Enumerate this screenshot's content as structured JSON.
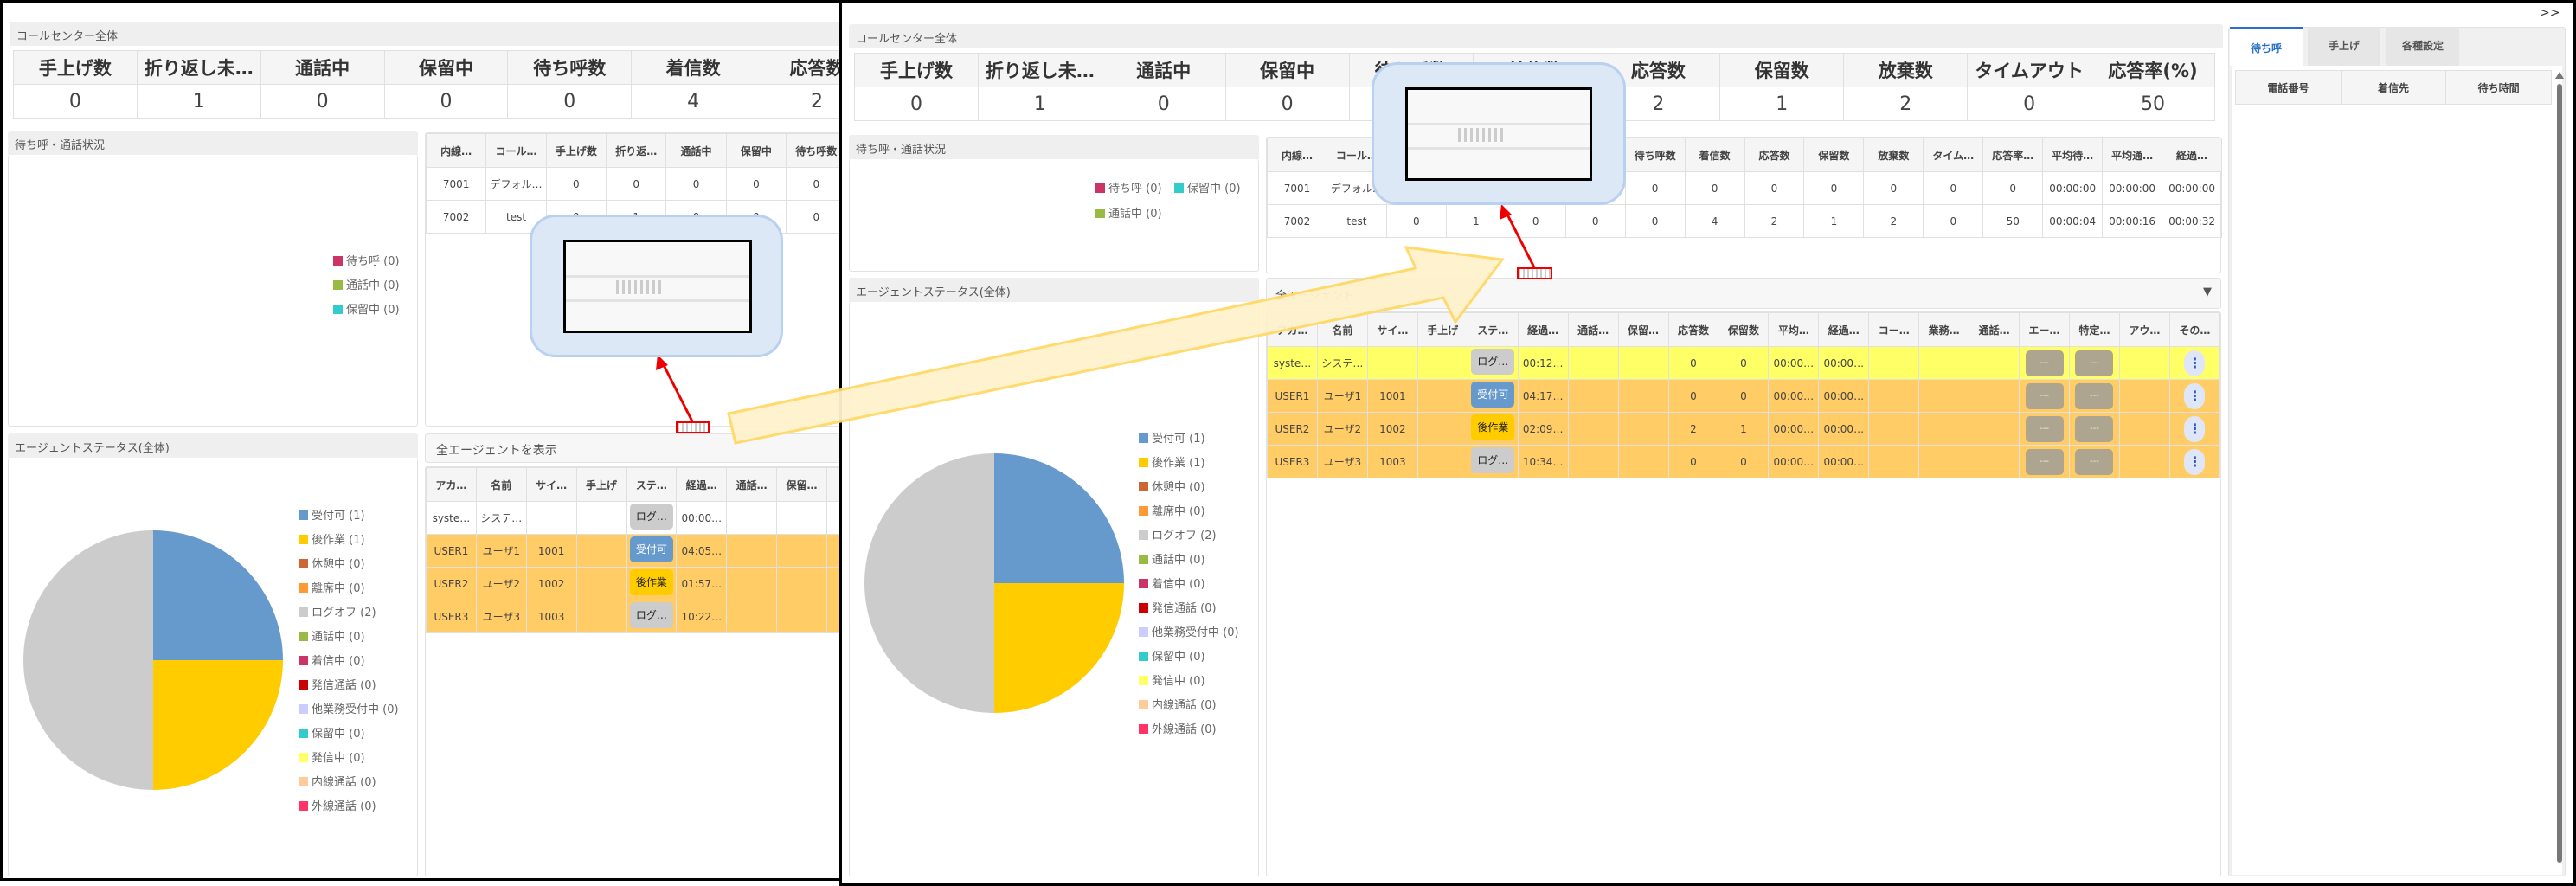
{
  "expand_label": ">>",
  "sections": {
    "callcenter": "コールセンター全体",
    "queue": "待ち呼・通話状況",
    "agent_status": "エージェントステータス(全体)",
    "agent_filter_left": "全エージェントを表示",
    "agent_filter_right": "全エージェント…",
    "dropdown_icon": "▼"
  },
  "kpi": {
    "headers": [
      "手上げ数",
      "折り返し未…",
      "通話中",
      "保留中",
      "待ち呼数",
      "着信数",
      "応答数",
      "保留数",
      "放棄数",
      "タイムアウト",
      "応答率(%)"
    ],
    "values": [
      "0",
      "1",
      "0",
      "0",
      "0",
      "4",
      "2",
      "1",
      "2",
      "0",
      "50"
    ]
  },
  "queue_legend": [
    {
      "label": "待ち呼 (0)",
      "color": "#cc3366"
    },
    {
      "label": "通話中 (0)",
      "color": "#99bb44"
    },
    {
      "label": "保留中 (0)",
      "color": "#33cccc"
    }
  ],
  "extension_table": {
    "headers": [
      "内線…",
      "コール…",
      "手上げ数",
      "折り返…",
      "通話中",
      "保留中",
      "待ち呼数",
      "着信数",
      "応答数",
      "保留数",
      "放棄数",
      "タイム…",
      "応答率…",
      "平均待…",
      "平均通…",
      "経過…"
    ],
    "rows": [
      [
        "7001",
        "デフォル…",
        "0",
        "0",
        "0",
        "0",
        "0",
        "0",
        "0",
        "0",
        "0",
        "0",
        "0",
        "00:00:00",
        "00:00:00",
        "00:00:00"
      ],
      [
        "7002",
        "test",
        "0",
        "1",
        "0",
        "0",
        "0",
        "4",
        "2",
        "1",
        "2",
        "0",
        "50",
        "00:00:04",
        "00:00:16",
        "00:00:32"
      ]
    ]
  },
  "agent_table_left": {
    "headers": [
      "アカ…",
      "名前",
      "サイ…",
      "手上げ",
      "ステ…",
      "経過…",
      "通話…",
      "保留…",
      "応…"
    ],
    "rows": [
      {
        "cells": [
          "syste…",
          "システ…",
          "",
          "",
          "ログ…",
          "00:00…",
          "",
          "",
          ""
        ],
        "status": "logoff",
        "bg": "#ffffff"
      },
      {
        "cells": [
          "USER1",
          "ユーザ1",
          "1001",
          "",
          "受付可",
          "04:05…",
          "",
          "",
          ""
        ],
        "status": "available",
        "bg": "#ffcc66"
      },
      {
        "cells": [
          "USER2",
          "ユーザ2",
          "1002",
          "",
          "後作業",
          "01:57…",
          "",
          "",
          ""
        ],
        "status": "after",
        "bg": "#ffcc66"
      },
      {
        "cells": [
          "USER3",
          "ユーザ3",
          "1003",
          "",
          "ログ…",
          "10:22…",
          "",
          "",
          ""
        ],
        "status": "logoff",
        "bg": "#ffcc66"
      }
    ]
  },
  "agent_table_right": {
    "headers": [
      "アカ…",
      "名前",
      "サイ…",
      "手上げ",
      "ステ…",
      "経過…",
      "通話…",
      "保留…",
      "応答数",
      "保留数",
      "平均…",
      "経過…",
      "コー…",
      "業務…",
      "通話…",
      "エー…",
      "特定…",
      "アウ…",
      "その…"
    ],
    "button_label": "---",
    "menu_label": "⋮",
    "rows": [
      {
        "cells": [
          "syste…",
          "システ…",
          "",
          "",
          "ログ…",
          "00:12…",
          "",
          "",
          "0",
          "0",
          "00:00…",
          "00:00…",
          "",
          "",
          "",
          "",
          "",
          "",
          ""
        ],
        "status": "logoff",
        "bg": "#ffff66"
      },
      {
        "cells": [
          "USER1",
          "ユーザ1",
          "1001",
          "",
          "受付可",
          "04:17…",
          "",
          "",
          "0",
          "0",
          "00:00…",
          "00:00…",
          "",
          "",
          "",
          "",
          "",
          "",
          ""
        ],
        "status": "available",
        "bg": "#ffcc66"
      },
      {
        "cells": [
          "USER2",
          "ユーザ2",
          "1002",
          "",
          "後作業",
          "02:09…",
          "",
          "",
          "2",
          "1",
          "00:00…",
          "00:00…",
          "",
          "",
          "",
          "",
          "",
          "",
          ""
        ],
        "status": "after",
        "bg": "#ffcc66"
      },
      {
        "cells": [
          "USER3",
          "ユーザ3",
          "1003",
          "",
          "ログ…",
          "10:34…",
          "",
          "",
          "0",
          "0",
          "00:00…",
          "00:00…",
          "",
          "",
          "",
          "",
          "",
          "",
          ""
        ],
        "status": "logoff",
        "bg": "#ffcc66"
      }
    ]
  },
  "status_colors": {
    "logoff": "#cccccc",
    "available": "#6699cc",
    "after": "#ffcc00"
  },
  "sidebar": {
    "tabs": [
      "待ち呼",
      "手上げ",
      "各種設定"
    ],
    "active_tab": 0,
    "headers": [
      "電話番号",
      "着信先",
      "待ち時間"
    ]
  },
  "chart_data": {
    "type": "pie",
    "legend_placement": "right",
    "categories": [
      "受付可",
      "後作業",
      "休憩中",
      "離席中",
      "ログオフ",
      "通話中",
      "着信中",
      "発信通話",
      "他業務受付中",
      "保留中",
      "発信中",
      "内線通話",
      "外線通話"
    ],
    "values": [
      1,
      1,
      0,
      0,
      2,
      0,
      0,
      0,
      0,
      0,
      0,
      0,
      0
    ],
    "legend_labels": [
      "受付可 (1)",
      "後作業 (1)",
      "休憩中 (0)",
      "離席中 (0)",
      "ログオフ (2)",
      "通話中 (0)",
      "着信中 (0)",
      "発信通話 (0)",
      "他業務受付中 (0)",
      "保留中 (0)",
      "発信中 (0)",
      "内線通話 (0)",
      "外線通話 (0)"
    ],
    "colors": [
      "#6699cc",
      "#ffcc00",
      "#cc6633",
      "#ff9933",
      "#cccccc",
      "#99bb44",
      "#cc3366",
      "#cc0000",
      "#ccccff",
      "#33cccc",
      "#ffff66",
      "#ffcc99",
      "#ff3366"
    ]
  }
}
